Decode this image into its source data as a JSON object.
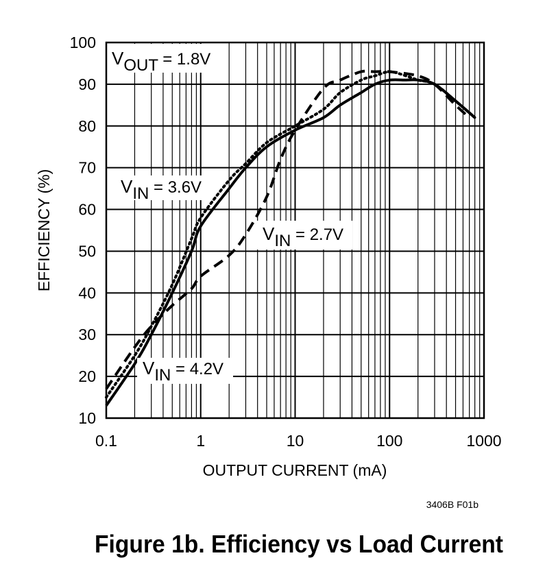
{
  "chart_data": {
    "type": "line",
    "xscale": "log",
    "xlim": [
      0.1,
      1000
    ],
    "ylim": [
      10,
      100
    ],
    "xlabel": "OUTPUT CURRENT (mA)",
    "ylabel": "EFFICIENCY (%)",
    "x_ticks": [
      "0.1",
      "1",
      "10",
      "100",
      "1000"
    ],
    "y_ticks": [
      "10",
      "20",
      "30",
      "40",
      "50",
      "60",
      "70",
      "80",
      "90",
      "100"
    ],
    "grid": true,
    "annotations": {
      "vout": {
        "main": "V",
        "sub": "OUT",
        "rest": " = 1.8V"
      },
      "vin_36": {
        "main": "V",
        "sub": "IN",
        "rest": " = 3.6V"
      },
      "vin_27": {
        "main": "V",
        "sub": "IN",
        "rest": " = 2.7V"
      },
      "vin_42": {
        "main": "V",
        "sub": "IN",
        "rest": " = 4.2V"
      }
    },
    "figure_code": "3406B F01b",
    "caption": "Figure 1b. Efficiency vs Load Current",
    "series": [
      {
        "name": "VIN = 2.7V",
        "style": "solid",
        "x": [
          0.1,
          0.2,
          0.3,
          0.5,
          0.8,
          1,
          2,
          3,
          5,
          10,
          20,
          30,
          50,
          70,
          100,
          150,
          200,
          300,
          500,
          800
        ],
        "y": [
          13,
          23,
          30,
          40,
          50,
          56,
          65,
          70,
          75,
          79,
          82,
          85,
          88,
          90,
          91,
          91,
          91,
          90,
          86,
          82
        ]
      },
      {
        "name": "VIN = 3.6V",
        "style": "dotted",
        "x": [
          0.1,
          0.2,
          0.3,
          0.5,
          0.8,
          1,
          2,
          3,
          5,
          10,
          20,
          30,
          50,
          70,
          100,
          150,
          200,
          300,
          500,
          800
        ],
        "y": [
          15,
          25,
          32,
          42,
          53,
          58,
          67,
          71,
          76,
          80,
          84,
          88,
          91,
          92,
          93,
          92,
          91,
          90,
          86,
          82
        ]
      },
      {
        "name": "VIN = 4.2V",
        "style": "dashed",
        "x": [
          0.1,
          0.2,
          0.3,
          0.5,
          0.8,
          1,
          2,
          3,
          5,
          7,
          10,
          20,
          30,
          50,
          70,
          100,
          200,
          300,
          500,
          700
        ],
        "y": [
          17,
          27,
          32,
          37,
          41,
          44,
          49,
          54,
          63,
          72,
          79,
          89,
          91,
          93,
          93,
          93,
          92,
          90,
          85,
          82
        ]
      }
    ]
  }
}
